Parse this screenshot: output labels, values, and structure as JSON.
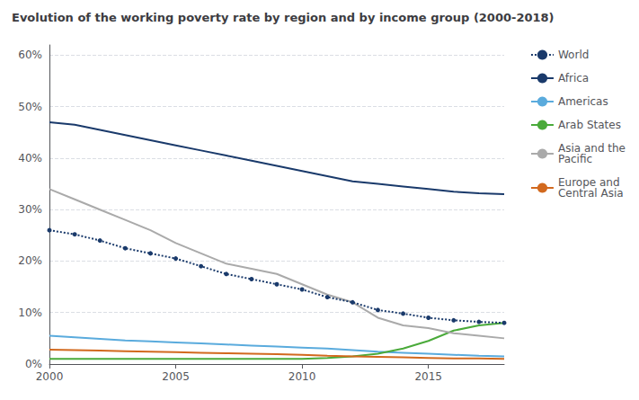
{
  "chart_data": {
    "type": "line",
    "title": "Evolution of the working poverty rate by region and by income group (2000-2018)",
    "x": [
      2000,
      2001,
      2002,
      2003,
      2004,
      2005,
      2006,
      2007,
      2008,
      2009,
      2010,
      2011,
      2012,
      2013,
      2014,
      2015,
      2016,
      2017,
      2018
    ],
    "series": [
      {
        "name": "World",
        "color": "#1a3a6b",
        "line_style": "dotted",
        "marker": "circle",
        "values": [
          26.0,
          25.2,
          24.0,
          22.5,
          21.5,
          20.5,
          19.0,
          17.5,
          16.5,
          15.5,
          14.5,
          13.0,
          12.0,
          10.5,
          9.8,
          9.0,
          8.5,
          8.2,
          8.0
        ]
      },
      {
        "name": "Africa",
        "color": "#1a3a6b",
        "line_style": "solid",
        "values": [
          47.0,
          46.5,
          45.5,
          44.5,
          43.5,
          42.5,
          41.5,
          40.5,
          39.5,
          38.5,
          37.5,
          36.5,
          35.5,
          35.0,
          34.5,
          34.0,
          33.5,
          33.2,
          33.0
        ]
      },
      {
        "name": "Americas",
        "color": "#5aabdd",
        "line_style": "solid",
        "values": [
          5.5,
          5.2,
          4.9,
          4.6,
          4.4,
          4.2,
          4.0,
          3.8,
          3.6,
          3.4,
          3.2,
          3.0,
          2.7,
          2.4,
          2.2,
          2.0,
          1.8,
          1.6,
          1.5
        ]
      },
      {
        "name": "Arab States",
        "color": "#4aaa3a",
        "line_style": "solid",
        "values": [
          1.0,
          1.0,
          1.0,
          1.0,
          1.0,
          1.0,
          1.0,
          1.0,
          1.0,
          1.0,
          1.0,
          1.2,
          1.5,
          2.0,
          3.0,
          4.5,
          6.5,
          7.5,
          8.0
        ]
      },
      {
        "name": "Asia and the\nPacific",
        "color": "#aaaaaa",
        "line_style": "solid",
        "values": [
          34.0,
          32.0,
          30.0,
          28.0,
          26.0,
          23.5,
          21.5,
          19.5,
          18.5,
          17.5,
          15.5,
          13.5,
          12.0,
          9.0,
          7.5,
          7.0,
          6.0,
          5.5,
          5.0
        ]
      },
      {
        "name": "Europe and\nCentral Asia",
        "color": "#d2691e",
        "line_style": "solid",
        "values": [
          2.8,
          2.7,
          2.6,
          2.5,
          2.4,
          2.3,
          2.2,
          2.1,
          2.0,
          1.9,
          1.8,
          1.6,
          1.5,
          1.4,
          1.3,
          1.2,
          1.1,
          1.1,
          1.0
        ]
      }
    ],
    "xlim": [
      2000,
      2018
    ],
    "xticks": [
      2000,
      2005,
      2010,
      2015
    ],
    "ylim": [
      0,
      62
    ],
    "yticks": [
      {
        "value": 0,
        "label": "0%"
      },
      {
        "value": 10,
        "label": "10%"
      },
      {
        "value": 20,
        "label": "20%"
      },
      {
        "value": 30,
        "label": "30%"
      },
      {
        "value": 40,
        "label": "40%"
      },
      {
        "value": 50,
        "label": "50%"
      },
      {
        "value": 60,
        "label": "60%"
      }
    ],
    "grid": true,
    "legend": "right"
  }
}
